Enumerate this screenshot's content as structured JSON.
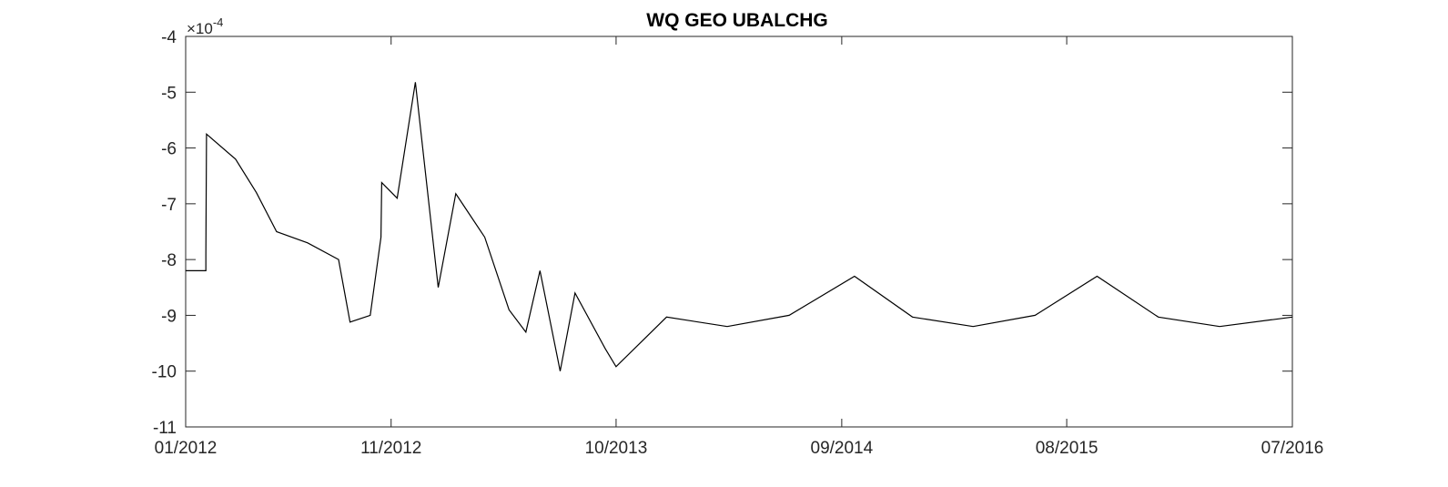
{
  "chart_data": {
    "type": "line",
    "title": "WQ GEO UBALCHG",
    "xlabel": "",
    "ylabel": "",
    "y_exponent_label": "×10",
    "y_exponent_power": "-4",
    "x_tick_labels": [
      "01/2012",
      "11/2012",
      "10/2013",
      "09/2014",
      "08/2015",
      "07/2016"
    ],
    "x_tick_dates": [
      "2012-01-01",
      "2012-11-01",
      "2013-10-01",
      "2014-09-01",
      "2015-08-01",
      "2016-07-01"
    ],
    "xlim": [
      "2012-01-01",
      "2016-07-01"
    ],
    "y_tick_labels": [
      "-4",
      "-5",
      "-6",
      "-7",
      "-8",
      "-9",
      "-10",
      "-11"
    ],
    "y_ticks": [
      -4,
      -5,
      -6,
      -7,
      -8,
      -9,
      -10,
      -11
    ],
    "ylim": [
      -11,
      -4
    ],
    "grid": false,
    "legend": "none",
    "line_color": "#000000",
    "series": [
      {
        "x": [
          "2012-01-01",
          "2012-01-31",
          "2012-01-31",
          "2012-02-01",
          "2012-03-15",
          "2012-04-15",
          "2012-05-15",
          "2012-06-30",
          "2012-08-15",
          "2012-09-01",
          "2012-10-01",
          "2012-10-17",
          "2012-10-18",
          "2012-11-10",
          "2012-12-07",
          "2013-01-10",
          "2013-02-05",
          "2013-03-20",
          "2013-04-25",
          "2013-05-20",
          "2013-06-10",
          "2013-07-10",
          "2013-08-01",
          "2013-09-15",
          "2013-10-01",
          "2013-12-15",
          "2014-03-15",
          "2014-06-15",
          "2014-09-20",
          "2014-12-15",
          "2015-03-15",
          "2015-06-15",
          "2015-09-15",
          "2015-12-15",
          "2016-03-15",
          "2016-07-01"
        ],
        "y": [
          -8.2,
          -8.2,
          -7.9,
          -5.75,
          -6.2,
          -6.8,
          -7.5,
          -7.7,
          -8.0,
          -9.12,
          -9.0,
          -7.6,
          -6.62,
          -6.9,
          -4.82,
          -8.5,
          -6.82,
          -7.6,
          -8.9,
          -9.3,
          -8.2,
          -10.0,
          -8.6,
          -9.6,
          -9.92,
          -9.03,
          -9.2,
          -9.0,
          -8.3,
          -9.03,
          -9.2,
          -9.0,
          -8.3,
          -9.03,
          -9.2,
          -9.03
        ]
      }
    ]
  }
}
